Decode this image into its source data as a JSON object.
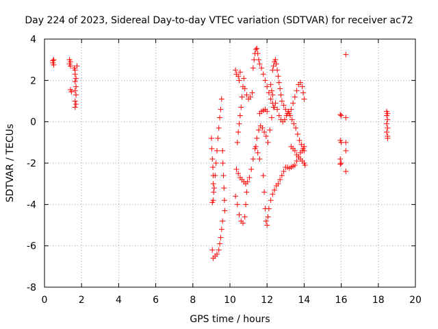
{
  "chart_data": {
    "type": "scatter",
    "title": "Day 224 of 2023, Sidereal Day-to-day VTEC variation (SDTVAR) for receiver ac72",
    "xlabel": "GPS time / hours",
    "ylabel": "SDTVAR / TECUs",
    "xlim": [
      0,
      20
    ],
    "ylim": [
      -8,
      4
    ],
    "xticks": [
      0,
      2,
      4,
      6,
      8,
      10,
      12,
      14,
      16,
      18,
      20
    ],
    "yticks": [
      -8,
      -6,
      -4,
      -2,
      0,
      2,
      4
    ],
    "grid": true,
    "marker": "+",
    "color": "#ff0000",
    "series": [
      {
        "name": "SDTVAR",
        "points": [
          [
            0.45,
            2.95
          ],
          [
            0.5,
            3.0
          ],
          [
            0.45,
            2.85
          ],
          [
            0.5,
            2.75
          ],
          [
            1.35,
            3.0
          ],
          [
            1.4,
            2.9
          ],
          [
            1.35,
            2.8
          ],
          [
            1.4,
            2.7
          ],
          [
            1.4,
            1.55
          ],
          [
            1.45,
            1.45
          ],
          [
            1.6,
            2.6
          ],
          [
            1.65,
            2.5
          ],
          [
            1.65,
            2.3
          ],
          [
            1.7,
            2.1
          ],
          [
            1.65,
            1.95
          ],
          [
            1.7,
            1.7
          ],
          [
            1.65,
            1.5
          ],
          [
            1.7,
            1.3
          ],
          [
            1.65,
            1.0
          ],
          [
            1.7,
            0.85
          ],
          [
            1.65,
            0.7
          ],
          [
            1.75,
            2.7
          ],
          [
            9.0,
            -0.8
          ],
          [
            9.02,
            -1.3
          ],
          [
            9.05,
            -1.8
          ],
          [
            9.08,
            -2.2
          ],
          [
            9.1,
            -2.6
          ],
          [
            9.1,
            -3.0
          ],
          [
            9.12,
            -3.4
          ],
          [
            9.1,
            -3.8
          ],
          [
            9.05,
            -3.9
          ],
          [
            9.15,
            -3.2
          ],
          [
            9.2,
            -2.6
          ],
          [
            9.25,
            -2.0
          ],
          [
            9.3,
            -1.4
          ],
          [
            9.35,
            -0.8
          ],
          [
            9.4,
            -0.3
          ],
          [
            9.45,
            0.2
          ],
          [
            9.5,
            0.6
          ],
          [
            9.55,
            1.1
          ],
          [
            9.6,
            -1.4
          ],
          [
            9.62,
            -2.0
          ],
          [
            9.65,
            -2.6
          ],
          [
            9.68,
            -3.2
          ],
          [
            9.7,
            -3.8
          ],
          [
            9.72,
            -4.3
          ],
          [
            9.6,
            -4.8
          ],
          [
            9.55,
            -5.2
          ],
          [
            9.5,
            -5.6
          ],
          [
            9.45,
            -5.9
          ],
          [
            9.4,
            -6.2
          ],
          [
            9.3,
            -6.4
          ],
          [
            9.2,
            -6.5
          ],
          [
            9.1,
            -6.6
          ],
          [
            9.05,
            -6.2
          ],
          [
            10.3,
            -3.6
          ],
          [
            10.4,
            -4.0
          ],
          [
            10.5,
            -4.5
          ],
          [
            10.6,
            -4.8
          ],
          [
            10.7,
            -4.9
          ],
          [
            10.8,
            -4.6
          ],
          [
            10.85,
            -4.0
          ],
          [
            10.9,
            -3.4
          ],
          [
            10.35,
            -2.3
          ],
          [
            10.45,
            -2.5
          ],
          [
            10.55,
            -2.7
          ],
          [
            10.65,
            -2.8
          ],
          [
            10.75,
            -2.9
          ],
          [
            10.85,
            -3.0
          ],
          [
            10.95,
            -2.9
          ],
          [
            11.05,
            -2.7
          ],
          [
            11.15,
            -2.3
          ],
          [
            11.25,
            -1.8
          ],
          [
            11.35,
            -1.3
          ],
          [
            11.45,
            -0.8
          ],
          [
            11.55,
            -0.4
          ],
          [
            11.65,
            -0.2
          ],
          [
            11.75,
            -0.3
          ],
          [
            11.85,
            -0.5
          ],
          [
            11.95,
            -0.7
          ],
          [
            10.4,
            -1.0
          ],
          [
            10.45,
            -0.5
          ],
          [
            10.5,
            -0.1
          ],
          [
            10.55,
            0.3
          ],
          [
            10.6,
            0.7
          ],
          [
            10.65,
            1.2
          ],
          [
            10.7,
            1.7
          ],
          [
            10.75,
            2.1
          ],
          [
            10.3,
            2.5
          ],
          [
            10.35,
            2.3
          ],
          [
            10.45,
            2.2
          ],
          [
            10.5,
            2.0
          ],
          [
            10.55,
            2.4
          ],
          [
            10.8,
            1.6
          ],
          [
            10.9,
            1.3
          ],
          [
            11.0,
            1.1
          ],
          [
            11.1,
            1.2
          ],
          [
            11.2,
            1.4
          ],
          [
            11.25,
            2.6
          ],
          [
            11.3,
            3.0
          ],
          [
            11.35,
            3.3
          ],
          [
            11.4,
            3.5
          ],
          [
            11.45,
            3.55
          ],
          [
            11.5,
            3.3
          ],
          [
            11.55,
            3.0
          ],
          [
            11.6,
            2.8
          ],
          [
            11.7,
            2.6
          ],
          [
            11.8,
            2.3
          ],
          [
            11.9,
            2.0
          ],
          [
            12.0,
            1.7
          ],
          [
            12.1,
            1.4
          ],
          [
            12.2,
            1.1
          ],
          [
            12.3,
            0.9
          ],
          [
            12.4,
            0.7
          ],
          [
            11.6,
            0.4
          ],
          [
            11.7,
            0.5
          ],
          [
            11.8,
            0.55
          ],
          [
            11.9,
            0.6
          ],
          [
            12.0,
            0.5
          ],
          [
            11.4,
            -1.2
          ],
          [
            11.5,
            -1.5
          ],
          [
            11.6,
            -1.8
          ],
          [
            11.8,
            -2.6
          ],
          [
            11.85,
            -3.4
          ],
          [
            11.9,
            -4.2
          ],
          [
            11.95,
            -4.8
          ],
          [
            12.0,
            -5.0
          ],
          [
            12.05,
            -4.6
          ],
          [
            12.1,
            -4.2
          ],
          [
            12.2,
            -3.8
          ],
          [
            12.3,
            -3.5
          ],
          [
            12.4,
            -3.3
          ],
          [
            12.5,
            -3.1
          ],
          [
            12.6,
            -3.0
          ],
          [
            12.7,
            -2.8
          ],
          [
            12.8,
            -2.6
          ],
          [
            12.9,
            -2.4
          ],
          [
            13.0,
            -2.2
          ],
          [
            13.1,
            -2.2
          ],
          [
            13.2,
            -2.25
          ],
          [
            13.3,
            -2.2
          ],
          [
            13.4,
            -2.15
          ],
          [
            13.5,
            -2.1
          ],
          [
            13.6,
            -1.9
          ],
          [
            13.7,
            -1.7
          ],
          [
            13.8,
            -1.5
          ],
          [
            13.9,
            -1.4
          ],
          [
            14.0,
            -1.4
          ],
          [
            12.05,
            -1.0
          ],
          [
            12.15,
            -0.4
          ],
          [
            12.25,
            0.2
          ],
          [
            12.35,
            0.7
          ],
          [
            12.45,
            0.9
          ],
          [
            12.55,
            0.6
          ],
          [
            12.65,
            0.3
          ],
          [
            12.75,
            0.1
          ],
          [
            12.85,
            0.0
          ],
          [
            12.95,
            0.1
          ],
          [
            13.05,
            0.3
          ],
          [
            13.15,
            0.5
          ],
          [
            13.25,
            0.3
          ],
          [
            13.35,
            0.1
          ],
          [
            13.45,
            -0.1
          ],
          [
            13.55,
            -0.3
          ],
          [
            13.65,
            -0.6
          ],
          [
            13.75,
            -0.9
          ],
          [
            13.85,
            -1.1
          ],
          [
            13.95,
            -1.3
          ],
          [
            14.0,
            -1.2
          ],
          [
            13.3,
            -1.2
          ],
          [
            13.4,
            -1.3
          ],
          [
            13.5,
            -1.4
          ],
          [
            13.6,
            -1.6
          ],
          [
            13.7,
            -1.7
          ],
          [
            13.8,
            -1.8
          ],
          [
            13.9,
            -1.9
          ],
          [
            14.0,
            -2.0
          ],
          [
            14.05,
            -2.1
          ],
          [
            12.3,
            2.5
          ],
          [
            12.35,
            2.7
          ],
          [
            12.4,
            2.9
          ],
          [
            12.45,
            3.0
          ],
          [
            12.5,
            2.8
          ],
          [
            12.55,
            2.5
          ],
          [
            12.6,
            2.2
          ],
          [
            12.65,
            1.9
          ],
          [
            12.7,
            1.6
          ],
          [
            12.75,
            1.3
          ],
          [
            12.8,
            1.0
          ],
          [
            12.9,
            0.8
          ],
          [
            13.0,
            0.6
          ],
          [
            13.1,
            0.4
          ],
          [
            13.2,
            0.4
          ],
          [
            13.3,
            0.6
          ],
          [
            13.4,
            0.9
          ],
          [
            13.5,
            1.2
          ],
          [
            13.6,
            1.5
          ],
          [
            13.7,
            1.8
          ],
          [
            13.8,
            1.9
          ],
          [
            13.9,
            1.7
          ],
          [
            13.95,
            1.4
          ],
          [
            14.0,
            1.1
          ],
          [
            12.2,
            1.8
          ],
          [
            12.25,
            1.5
          ],
          [
            12.3,
            1.3
          ],
          [
            15.95,
            0.35
          ],
          [
            16.0,
            0.3
          ],
          [
            15.95,
            -0.9
          ],
          [
            16.0,
            -1.0
          ],
          [
            15.95,
            -1.8
          ],
          [
            16.0,
            -2.0
          ],
          [
            15.95,
            -2.05
          ],
          [
            16.25,
            3.25
          ],
          [
            16.25,
            0.2
          ],
          [
            16.25,
            -1.0
          ],
          [
            16.25,
            -1.4
          ],
          [
            16.25,
            -2.4
          ],
          [
            18.45,
            0.5
          ],
          [
            18.5,
            0.4
          ],
          [
            18.45,
            0.3
          ],
          [
            18.5,
            0.1
          ],
          [
            18.45,
            -0.1
          ],
          [
            18.5,
            -0.3
          ],
          [
            18.45,
            -0.5
          ],
          [
            18.5,
            -0.7
          ],
          [
            18.5,
            -0.8
          ]
        ]
      }
    ]
  }
}
